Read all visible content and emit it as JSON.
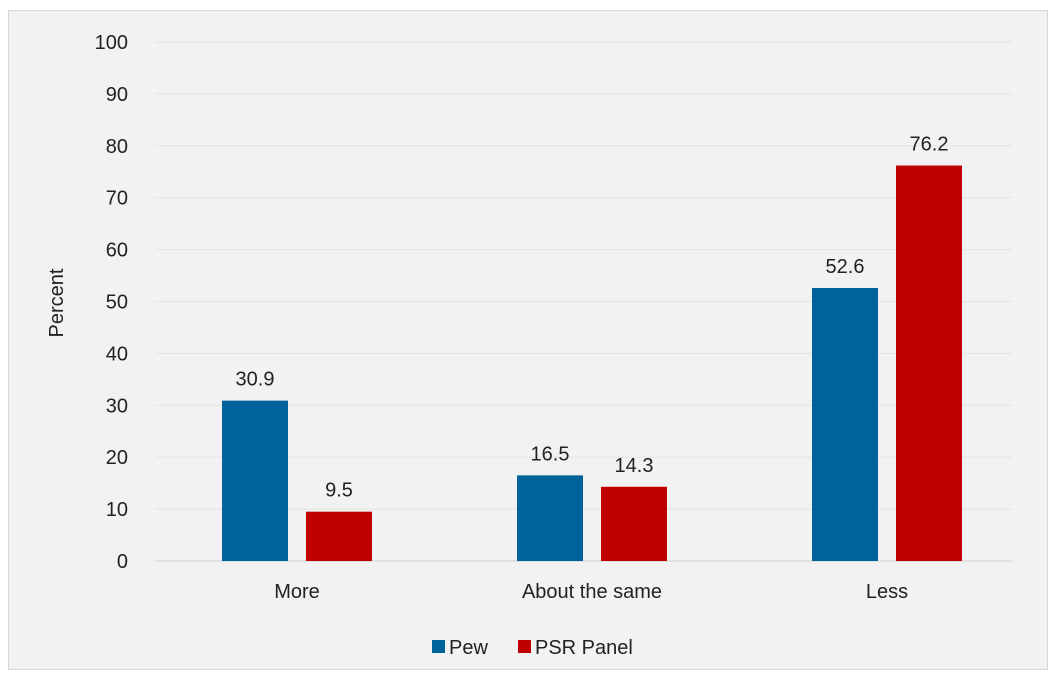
{
  "chart_data": {
    "type": "bar",
    "categories": [
      "More",
      "About the same",
      "Less"
    ],
    "series": [
      {
        "name": "Pew",
        "color": "#00629b",
        "values": [
          30.9,
          16.5,
          52.6
        ]
      },
      {
        "name": "PSR Panel",
        "color": "#c00000",
        "values": [
          9.5,
          14.3,
          76.2
        ]
      }
    ],
    "title": "",
    "xlabel": "",
    "ylabel": "Percent",
    "ylim": [
      0,
      100
    ],
    "yticks": [
      "0",
      "10",
      "20",
      "30",
      "40",
      "50",
      "60",
      "70",
      "80",
      "90",
      "100"
    ],
    "data_labels": [
      [
        "30.9",
        "16.5",
        "52.6"
      ],
      [
        "9.5",
        "14.3",
        "76.2"
      ]
    ],
    "grid": true,
    "legend_position": "bottom"
  }
}
